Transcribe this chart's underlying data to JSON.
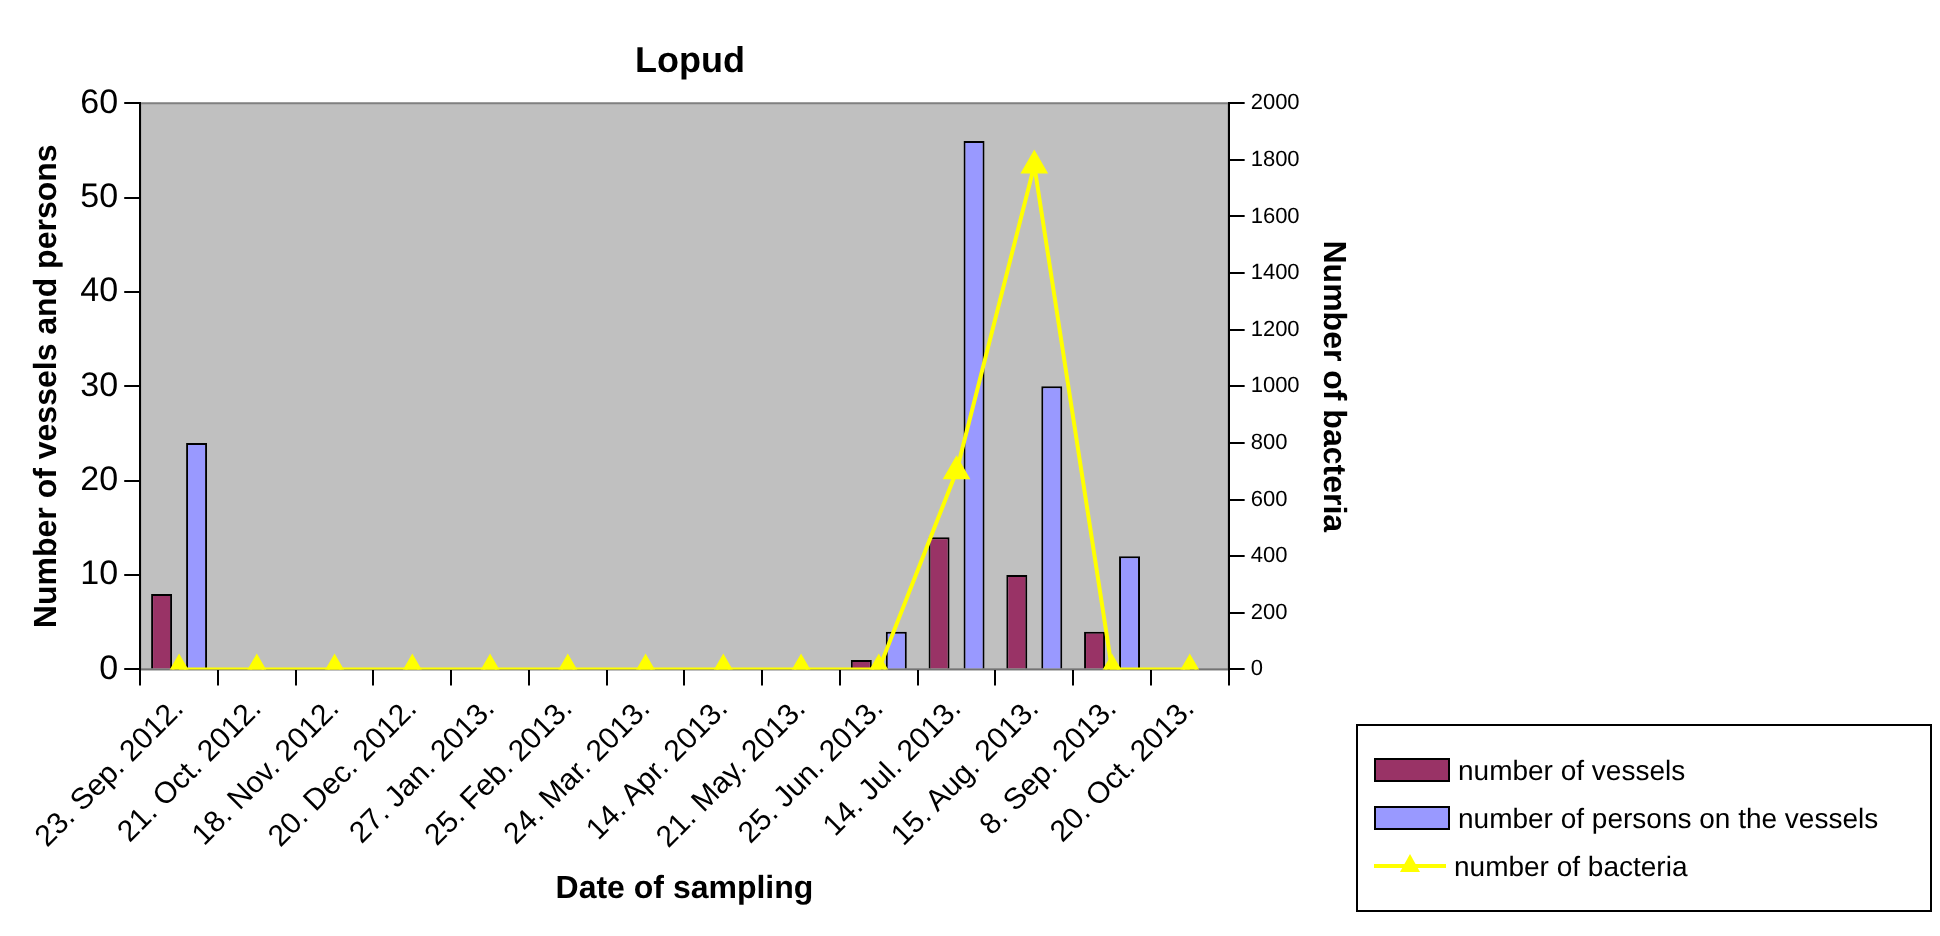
{
  "chart_data": {
    "type": "bar",
    "title": "Lopud",
    "xlabel": "Date of sampling",
    "ylabel": "Number of vessels and persons",
    "y2label": "Number of bacteria",
    "categories": [
      "23. Sep. 2012.",
      "21. Oct. 2012.",
      "18. Nov. 2012.",
      "20. Dec. 2012.",
      "27. Jan. 2013.",
      "25. Feb. 2013.",
      "24. Mar. 2013.",
      "14. Apr. 2013.",
      "21. May. 2013.",
      "25. Jun. 2013.",
      "14. Jul. 2013.",
      "15. Aug. 2013.",
      "8. Sep. 2013.",
      "20. Oct. 2013."
    ],
    "series": [
      {
        "name": "number of vessels",
        "color": "#993366",
        "values": [
          8,
          0,
          0,
          0,
          0,
          0,
          0,
          0,
          0,
          1,
          14,
          10,
          4,
          0
        ]
      },
      {
        "name": "number of persons on the vessels",
        "color": "#9999ff",
        "values": [
          24,
          0,
          0,
          0,
          0,
          0,
          0,
          0,
          0,
          4,
          56,
          30,
          12,
          0
        ]
      },
      {
        "name": "number of bacteria",
        "type": "line",
        "axis": "y2",
        "color": "#ffff00",
        "marker": "triangle",
        "values": [
          0,
          0,
          0,
          0,
          0,
          0,
          0,
          0,
          0,
          0,
          700,
          1780,
          0,
          0
        ]
      }
    ],
    "ylim": [
      0,
      60
    ],
    "yticks": [
      0,
      10,
      20,
      30,
      40,
      50,
      60
    ],
    "y2lim": [
      0,
      2000
    ],
    "y2ticks": [
      0,
      200,
      400,
      600,
      800,
      1000,
      1200,
      1400,
      1600,
      1800,
      2000
    ],
    "grid": false,
    "legend": "bottom right"
  }
}
